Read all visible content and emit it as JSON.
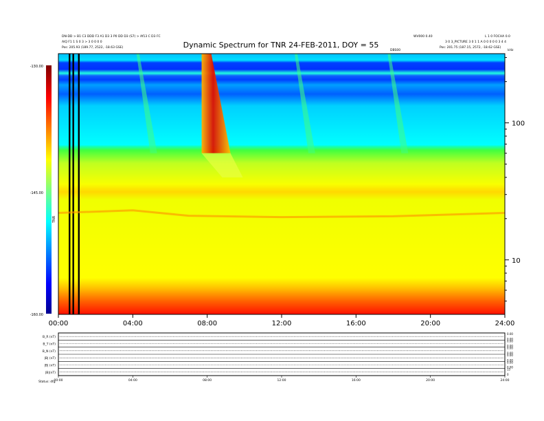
{
  "header": {
    "title": "Dynamic Spectrum for TNR 24-FEB-2011, DOY = 55",
    "top_left_line1": "DN-DD > B1 C3 DDD F3 A1 D3 3 P0 DD D3 (S7) > Af13 C D3 FC",
    "top_left_line2": "AlQ F1 1 S 0 3 > 3 0 0 0 0",
    "top_left_line3": "Pos:  205.93 (189.77, 2522, -18.63 GSE)",
    "top_right_line1": "WV000 0.40",
    "top_right_line2": "L 1 0 FOCHA 0.0",
    "top_right_line3": "3 0 3_PICTURE 3 0 1 1 A 0 0 0 0 0 3 4 4",
    "top_right_line4": "Pos:  201.75 (187.15, 2572, -18.62 GSE)",
    "mid_right_label": "DBS00",
    "axis_unit_label": "kHz"
  },
  "colorbar": {
    "max_label": "-130.00",
    "mid_label": "-145.00",
    "min_label": "-160.00",
    "axis_label": "TNR"
  },
  "chart_data": [
    {
      "type": "heatmap",
      "title": "Dynamic Spectrum for TNR 24-FEB-2011, DOY = 55",
      "x_ticks": [
        "00:00",
        "04:00",
        "08:00",
        "12:00",
        "16:00",
        "20:00",
        "24:00"
      ],
      "x_range_hours": [
        0,
        24
      ],
      "y_scale": "log",
      "y_ticks": [
        100,
        10
      ],
      "y_range_khz": [
        4,
        320
      ],
      "color_scale": "jet",
      "color_range": [
        -160,
        -130
      ],
      "colorbar_ticks": [
        "-130.00",
        "-145.00",
        "-160.00"
      ],
      "features": {
        "burst_start_hours": [
          4.2,
          7.7,
          12.7,
          17.7
        ],
        "strong_burst_hours": [
          7.7,
          8.9
        ],
        "data_gap_hours": [
          0.6,
          0.8,
          1.1
        ]
      }
    },
    {
      "type": "line",
      "panels": [
        {
          "label": "B_R (nT)",
          "right_ticks": [
            "0.00",
            "0.00"
          ]
        },
        {
          "label": "B_T (nT)",
          "right_ticks": [
            "0.00",
            "0.00"
          ]
        },
        {
          "label": "B_N (nT)",
          "right_ticks": [
            "0.00",
            "0.00"
          ]
        },
        {
          "label": "|B| (nT)",
          "right_ticks": [
            "0.00",
            "0.00"
          ]
        },
        {
          "label": "|B| (nT)",
          "right_ticks": [
            "0.00",
            "0.00"
          ]
        },
        {
          "label": "|B|(nT)",
          "right_ticks": [
            "15",
            "0"
          ]
        }
      ],
      "x_ticks": [
        "00:00",
        "04:00",
        "08:00",
        "12:00",
        "16:00",
        "20:00",
        "24:00"
      ],
      "footer_label": "Status: dfg"
    }
  ]
}
